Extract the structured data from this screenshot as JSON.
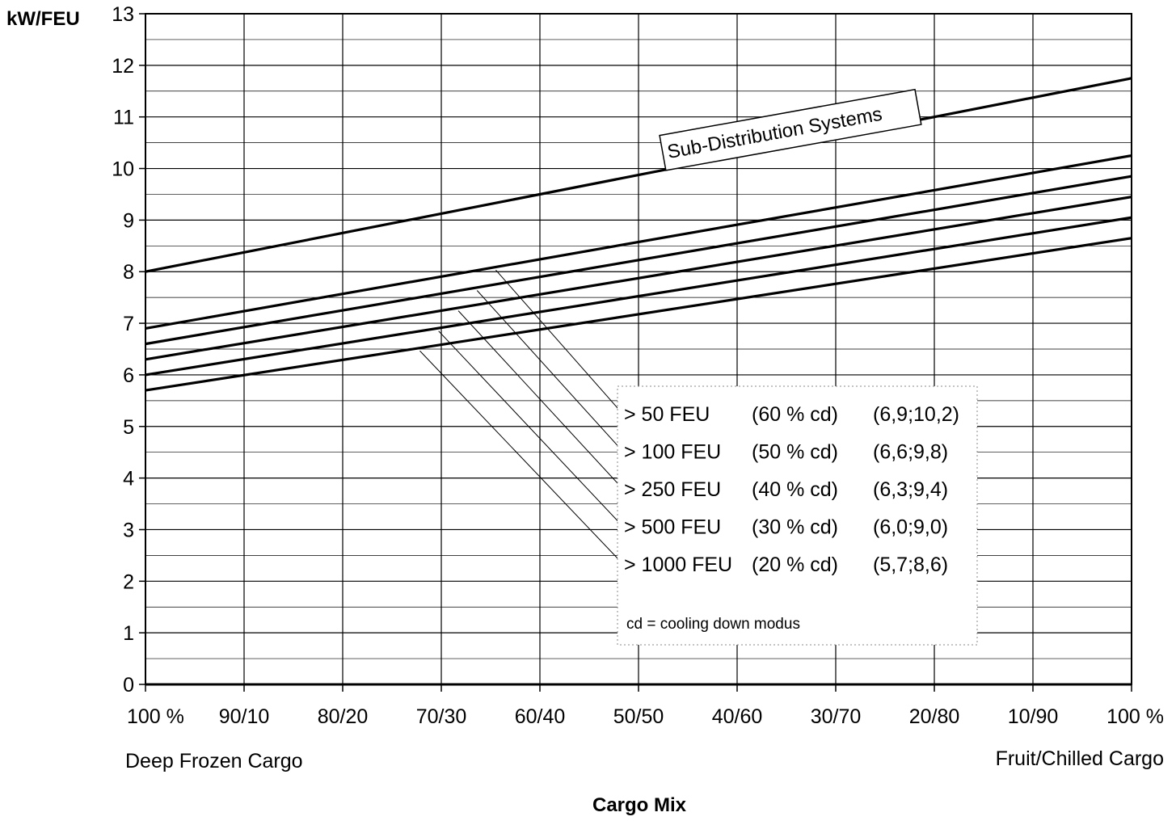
{
  "chart_data": {
    "type": "line",
    "ylabel": "kW/FEU",
    "xlabel": "Cargo Mix",
    "x_tick_labels": [
      "100 %",
      "90/10",
      "80/20",
      "70/30",
      "60/40",
      "50/50",
      "40/60",
      "30/70",
      "20/80",
      "10/90",
      "100 %"
    ],
    "x_caption_left": "Deep Frozen Cargo",
    "x_caption_right": "Fruit/Chilled Cargo",
    "y_ticks": [
      0,
      1,
      2,
      3,
      4,
      5,
      6,
      7,
      8,
      9,
      10,
      11,
      12,
      13
    ],
    "ylim": [
      0,
      13
    ],
    "grid": true,
    "legend_placement": "center-right",
    "annotation": "Sub-Distribution Systems",
    "series": [
      {
        "values": [
          8.0,
          11.75
        ]
      },
      {
        "values": [
          6.9,
          10.25
        ]
      },
      {
        "values": [
          6.6,
          9.85
        ]
      },
      {
        "values": [
          6.3,
          9.45
        ]
      },
      {
        "values": [
          6.0,
          9.05
        ]
      },
      {
        "values": [
          5.7,
          8.65
        ]
      }
    ],
    "legend": [
      {
        "feu": "> 50 FEU",
        "cd": "(60 % cd)",
        "range": "(6,9;10,2)"
      },
      {
        "feu": "> 100 FEU",
        "cd": "(50 % cd)",
        "range": "(6,6;9,8)"
      },
      {
        "feu": "> 250 FEU",
        "cd": "(40 % cd)",
        "range": "(6,3;9,4)"
      },
      {
        "feu": "> 500 FEU",
        "cd": "(30 % cd)",
        "range": "(6,0;9,0)"
      },
      {
        "feu": "> 1000 FEU",
        "cd": "(20 % cd)",
        "range": "(5,7;8,6)"
      }
    ],
    "legend_note": "cd = cooling down modus"
  }
}
